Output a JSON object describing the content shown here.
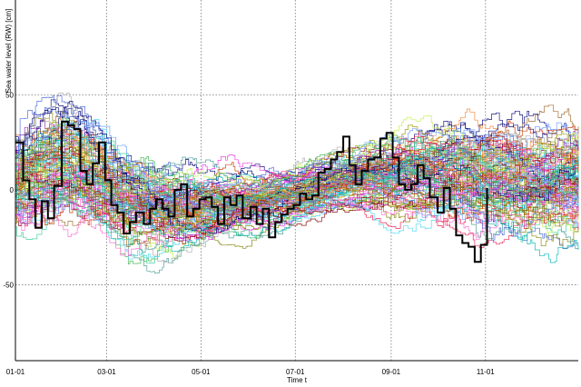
{
  "chart_data": {
    "type": "line",
    "title": "",
    "xlabel": "Time t",
    "ylabel": "Sea water level (RW) [cm]",
    "xlim": [
      "01-01",
      "12-31"
    ],
    "ylim": [
      -90,
      100
    ],
    "x_ticks": [
      "01-01",
      "03-01",
      "05-01",
      "07-01",
      "09-01",
      "11-01"
    ],
    "y_ticks": [
      50,
      0,
      -50
    ],
    "grid": true,
    "ensemble": {
      "member_count": 100,
      "envelope": {
        "x": [
          "01-01",
          "01-16",
          "02-01",
          "02-16",
          "03-01",
          "03-16",
          "04-01",
          "04-16",
          "05-01",
          "05-16",
          "06-01",
          "06-16",
          "07-01",
          "07-16",
          "08-01",
          "08-16",
          "09-01",
          "09-16",
          "10-01",
          "10-16",
          "11-01",
          "11-16",
          "12-01",
          "12-16",
          "12-31"
        ],
        "mean": [
          5,
          10,
          14,
          10,
          2,
          -6,
          -10,
          -11,
          -9,
          -7,
          -6,
          -4,
          -2,
          2,
          5,
          7,
          8,
          9,
          9,
          8,
          6,
          5,
          4,
          4,
          4
        ],
        "spread": [
          30,
          34,
          35,
          33,
          32,
          31,
          29,
          27,
          24,
          21,
          19,
          17,
          16,
          17,
          19,
          22,
          25,
          27,
          30,
          32,
          33,
          34,
          34,
          34,
          34
        ]
      }
    },
    "series": [
      {
        "color": "#000000",
        "highlight": true,
        "x": [
          "01-01",
          "01-06",
          "01-10",
          "01-14",
          "01-18",
          "01-22",
          "01-26",
          "01-31",
          "02-04",
          "02-08",
          "02-12",
          "02-16",
          "02-20",
          "02-24",
          "02-28",
          "03-04",
          "03-08",
          "03-12",
          "03-16",
          "03-20",
          "03-25",
          "03-29",
          "04-02",
          "04-06",
          "04-10",
          "04-14",
          "04-18",
          "04-22",
          "04-26",
          "04-30",
          "05-04",
          "05-08",
          "05-12",
          "05-16",
          "05-20",
          "05-24",
          "05-28",
          "06-02",
          "06-06",
          "06-10",
          "06-14",
          "06-18",
          "06-22",
          "06-26",
          "06-30",
          "07-04",
          "07-08",
          "07-12",
          "07-16",
          "07-20",
          "07-24",
          "07-28",
          "08-01",
          "08-05",
          "08-09",
          "08-13",
          "08-17",
          "08-21",
          "08-25",
          "08-29",
          "09-02",
          "09-06",
          "09-10",
          "09-14",
          "09-18",
          "09-22",
          "09-26",
          "10-01",
          "10-05",
          "10-09",
          "10-13",
          "10-17",
          "10-21",
          "10-25",
          "10-29",
          "11-02"
        ],
        "values": [
          25,
          5,
          -5,
          -20,
          -6,
          -15,
          2,
          36,
          34,
          32,
          10,
          3,
          14,
          25,
          5,
          -8,
          -12,
          -23,
          -17,
          -12,
          -18,
          -10,
          -5,
          -10,
          -14,
          0,
          3,
          -14,
          -10,
          -5,
          -4,
          -9,
          -18,
          -4,
          -8,
          -3,
          -15,
          -9,
          -18,
          -10,
          -25,
          -17,
          -13,
          -10,
          -8,
          -2,
          -5,
          -3,
          9,
          11,
          16,
          20,
          28,
          13,
          3,
          10,
          16,
          17,
          27,
          30,
          17,
          3,
          0,
          3,
          13,
          6,
          -4,
          -12,
          1,
          -10,
          -24,
          -28,
          -30,
          -38,
          -29,
          1
        ]
      }
    ]
  },
  "colors": {
    "grid": "#777777",
    "axis": "#000000",
    "palette": [
      "#e6194b",
      "#3cb44b",
      "#4363d8",
      "#f58231",
      "#911eb4",
      "#42d4f4",
      "#f032e6",
      "#bfef45",
      "#469990",
      "#9a6324",
      "#800000",
      "#808000",
      "#000075",
      "#a9a9a9",
      "#ff66cc",
      "#33cc99",
      "#6699ff",
      "#cc3300",
      "#999900",
      "#00b3b3"
    ]
  }
}
